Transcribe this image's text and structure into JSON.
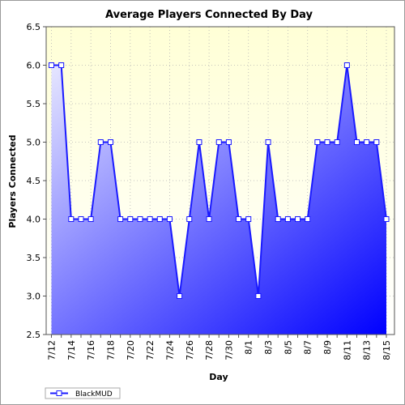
{
  "chart_data": {
    "type": "area",
    "title": "Average Players Connected By Day",
    "xlabel": "Day",
    "ylabel": "Players Connected",
    "ylim": [
      2.5,
      6.5
    ],
    "yticks": [
      "2.5",
      "3.0",
      "3.5",
      "4.0",
      "4.5",
      "5.0",
      "5.5",
      "6.0",
      "6.5"
    ],
    "categories": [
      "7/12",
      "7/13",
      "7/14",
      "7/15",
      "7/16",
      "7/17",
      "7/18",
      "7/19",
      "7/20",
      "7/21",
      "7/22",
      "7/23",
      "7/24",
      "7/25",
      "7/26",
      "7/27",
      "7/28",
      "7/29",
      "7/30",
      "7/31",
      "8/1",
      "8/2",
      "8/3",
      "8/4",
      "8/5",
      "8/6",
      "8/7",
      "8/8",
      "8/9",
      "8/10",
      "8/11",
      "8/12",
      "8/13",
      "8/14",
      "8/15"
    ],
    "xtick_labels": [
      "7/12",
      "7/14",
      "7/16",
      "7/18",
      "7/20",
      "7/22",
      "7/24",
      "7/26",
      "7/28",
      "7/30",
      "8/1",
      "8/3",
      "8/5",
      "8/7",
      "8/9",
      "8/11",
      "8/13",
      "8/15"
    ],
    "series": [
      {
        "name": "BlackMUD",
        "values": [
          6.0,
          6.0,
          4.0,
          4.0,
          4.0,
          5.0,
          5.0,
          4.0,
          4.0,
          4.0,
          4.0,
          4.0,
          4.0,
          3.0,
          4.0,
          5.0,
          4.0,
          5.0,
          5.0,
          4.0,
          4.0,
          3.0,
          5.0,
          4.0,
          4.0,
          4.0,
          4.0,
          5.0,
          5.0,
          5.0,
          6.0,
          5.0,
          5.0,
          5.0,
          4.0
        ]
      }
    ],
    "grid": true,
    "legend_position": "bottom-left",
    "colors": {
      "line": "#1a1aff",
      "marker_fill": "#ffffff",
      "area_light": "#e6e6ff",
      "area_dark": "#0000ff",
      "plot_background_top": "#ffffd6",
      "plot_background_bottom": "#ffffff"
    }
  }
}
